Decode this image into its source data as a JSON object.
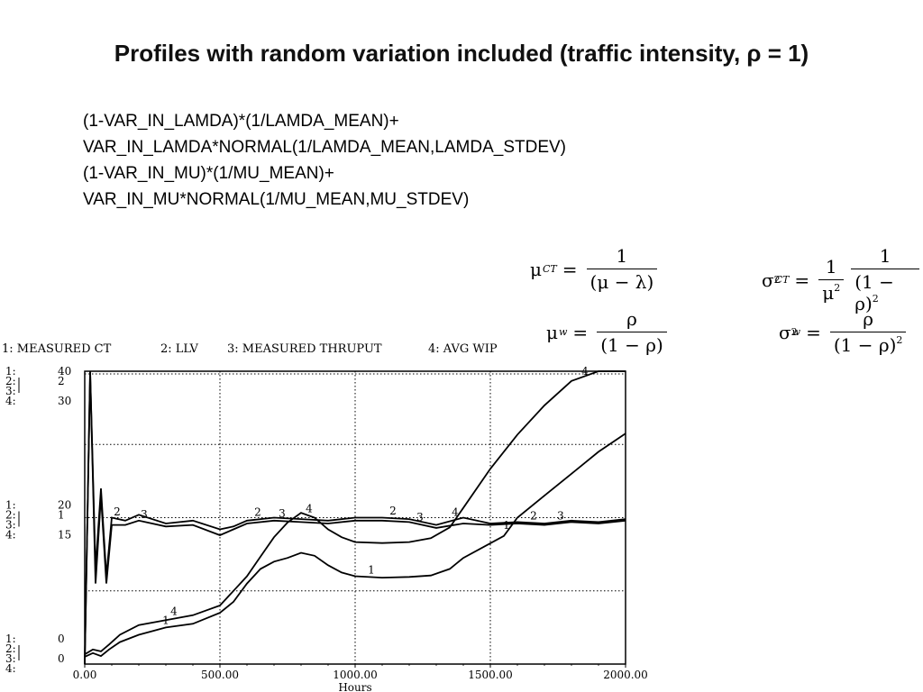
{
  "title": "Profiles with random variation included (traffic intensity, ρ = 1)",
  "code_lines": [
    "(1-VAR_IN_LAMDA)*(1/LAMDA_MEAN)+",
    "VAR_IN_LAMDA*NORMAL(1/LAMDA_MEAN,LAMDA_STDEV)",
    "(1-VAR_IN_MU)*(1/MU_MEAN)+",
    "VAR_IN_MU*NORMAL(1/MU_MEAN,MU_STDEV)"
  ],
  "formulas": {
    "mu": "μ",
    "sigma": "σ",
    "lambda": "λ",
    "rho": "ρ",
    "sub_ct": "CT",
    "sub_w": "w",
    "sup2": "2",
    "eq": "=",
    "one": "1",
    "one_minus_rho": "(1 − ρ)",
    "mu_minus_lambda": "(μ − λ)"
  },
  "chart_data": {
    "type": "line",
    "legend": [
      {
        "id": "1",
        "label": "1: MEASURED CT"
      },
      {
        "id": "2",
        "label": "2: LLV"
      },
      {
        "id": "3",
        "label": "3: MEASURED THRUPUT"
      },
      {
        "id": "4",
        "label": "4: AVG WIP"
      }
    ],
    "xlabel": "Hours",
    "xlim": [
      0,
      2000
    ],
    "x_ticks": [
      "0.00",
      "500.00",
      "1000.00",
      "1500.00",
      "2000.00"
    ],
    "x_tick_values": [
      0,
      500,
      1000,
      1500,
      2000
    ],
    "y_tick_groups": [
      {
        "frac": 0.0,
        "labels": [
          "1:",
          "2:",
          "3:",
          "4:"
        ],
        "values": [
          "40",
          "2",
          "",
          "30"
        ]
      },
      {
        "frac": 0.5,
        "labels": [
          "1:",
          "2:",
          "3:",
          "4:"
        ],
        "values": [
          "20",
          "1",
          "",
          "15"
        ]
      },
      {
        "frac": 1.0,
        "labels": [
          "1:",
          "2:",
          "3:",
          "4:"
        ],
        "values": [
          "0",
          "",
          "0",
          ""
        ]
      }
    ],
    "series": [
      {
        "id": "1",
        "ymax": 40,
        "labels_at": [
          300,
          1060,
          1560
        ],
        "x": [
          0,
          30,
          60,
          90,
          130,
          200,
          300,
          400,
          500,
          550,
          600,
          650,
          700,
          750,
          800,
          850,
          900,
          950,
          1000,
          1100,
          1200,
          1280,
          1350,
          1400,
          1500,
          1550,
          1600,
          1700,
          1800,
          1900,
          2000
        ],
        "y": [
          1,
          1.5,
          1.1,
          2,
          3,
          4,
          5,
          5.5,
          7,
          8.5,
          11,
          13,
          14,
          14.5,
          15.2,
          14.8,
          13.5,
          12.5,
          12,
          11.8,
          11.9,
          12.1,
          13,
          14.5,
          16.5,
          17.5,
          20,
          23,
          26,
          29,
          31.5
        ]
      },
      {
        "id": "2",
        "ymax": 2,
        "labels_at": [
          120,
          640,
          1140,
          1660
        ],
        "x": [
          0,
          20,
          40,
          60,
          80,
          100,
          150,
          200,
          300,
          400,
          500,
          550,
          600,
          700,
          800,
          900,
          1000,
          1100,
          1200,
          1300,
          1400,
          1500,
          1600,
          1700,
          1800,
          1900,
          2000
        ],
        "y": [
          0,
          2.0,
          0.65,
          1.2,
          0.6,
          1.0,
          0.98,
          1.02,
          0.96,
          0.98,
          0.92,
          0.94,
          0.98,
          1.0,
          0.99,
          0.98,
          1.0,
          1.0,
          0.99,
          0.95,
          1.0,
          0.96,
          0.97,
          0.96,
          0.98,
          0.97,
          0.99
        ]
      },
      {
        "id": "3",
        "ymax": 2,
        "labels_at": [
          220,
          730,
          1240,
          1760
        ],
        "x": [
          0,
          20,
          40,
          60,
          80,
          100,
          150,
          200,
          300,
          400,
          500,
          550,
          600,
          700,
          800,
          900,
          1000,
          1100,
          1200,
          1300,
          1400,
          1500,
          1600,
          1700,
          1800,
          1900,
          2000
        ],
        "y": [
          0,
          2.0,
          0.55,
          1.15,
          0.55,
          0.95,
          0.95,
          0.98,
          0.94,
          0.95,
          0.88,
          0.92,
          0.96,
          0.98,
          0.97,
          0.96,
          0.98,
          0.98,
          0.97,
          0.93,
          0.96,
          0.95,
          0.96,
          0.95,
          0.97,
          0.96,
          0.98
        ]
      },
      {
        "id": "4",
        "ymax": 30,
        "labels_at": [
          330,
          830,
          1370,
          1850
        ],
        "x": [
          0,
          30,
          60,
          90,
          130,
          200,
          300,
          400,
          500,
          550,
          600,
          650,
          700,
          750,
          800,
          850,
          900,
          950,
          1000,
          1100,
          1200,
          1280,
          1350,
          1400,
          1500,
          1600,
          1700,
          1800,
          1900,
          2000
        ],
        "y": [
          1,
          1.5,
          1.3,
          2,
          3,
          4,
          4.5,
          5,
          6,
          7.5,
          9,
          11,
          13,
          14.5,
          15.5,
          15.0,
          13.8,
          13,
          12.5,
          12.4,
          12.5,
          12.9,
          14,
          16,
          20,
          23.5,
          26.5,
          29,
          31.5,
          33.5
        ]
      }
    ],
    "grid": "dotted"
  }
}
